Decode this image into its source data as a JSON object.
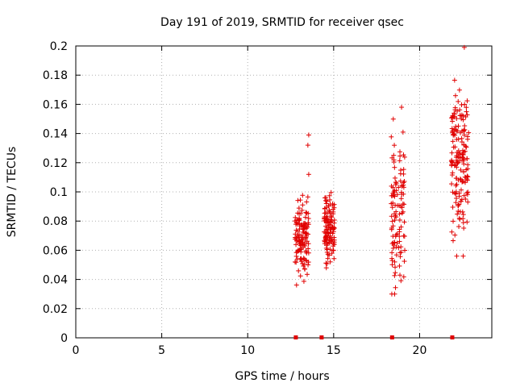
{
  "chart_data": {
    "type": "scatter",
    "title": "Day 191 of 2019, SRMTID for receiver qsec",
    "xlabel": "GPS time / hours",
    "ylabel": "SRMTID / TECUs",
    "xlim": [
      0,
      24.2
    ],
    "ylim": [
      0,
      0.2
    ],
    "x_ticks": [
      0,
      5,
      10,
      15,
      20
    ],
    "y_ticks": [
      0,
      0.02,
      0.04,
      0.06,
      0.08,
      0.1,
      0.12,
      0.14,
      0.16,
      0.18,
      0.2
    ],
    "x_tick_labels": [
      "0",
      "5",
      "10",
      "15",
      "20"
    ],
    "y_tick_labels": [
      "0",
      "0.02",
      "0.04",
      "0.06",
      "0.08",
      "0.1",
      "0.12",
      "0.14",
      "0.16",
      "0.18",
      "0.2"
    ],
    "grid": true,
    "marker": "+",
    "color": "#e00000",
    "zero_markers_x": [
      12.8,
      14.3,
      18.4,
      21.9
    ],
    "clusters": [
      {
        "x_range": [
          12.75,
          13.55
        ],
        "y_range": [
          0.033,
          0.108
        ],
        "count": 130,
        "center_y": 0.07
      },
      {
        "x_range": [
          14.45,
          15.05
        ],
        "y_range": [
          0.045,
          0.108
        ],
        "count": 120,
        "center_y": 0.075
      },
      {
        "x_range": [
          18.35,
          19.15
        ],
        "y_range": [
          0.03,
          0.158
        ],
        "count": 110,
        "center_y": 0.085
      },
      {
        "x_range": [
          21.85,
          22.85
        ],
        "y_range": [
          0.056,
          0.199
        ],
        "count": 170,
        "center_y": 0.125
      }
    ],
    "outliers": [
      {
        "x": 13.55,
        "y": 0.139
      },
      {
        "x": 13.5,
        "y": 0.132
      },
      {
        "x": 13.55,
        "y": 0.112
      },
      {
        "x": 18.95,
        "y": 0.158
      },
      {
        "x": 22.6,
        "y": 0.199
      },
      {
        "x": 18.55,
        "y": 0.03
      }
    ]
  }
}
